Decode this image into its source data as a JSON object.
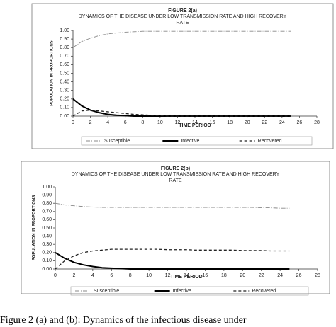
{
  "caption": "Figure 2 (a) and (b): Dynamics of the infectious disease under",
  "chart_data": [
    {
      "type": "line",
      "title": "FIGURE 2(a)",
      "subtitle": "DYNAMICS OF THE DISEASE UNDER LOW TRANSMISSION RATE AND HIGH RECOVERY RATE",
      "xlabel": "TIME PERIOD",
      "ylabel": "POPULATION IN PROPORTIONS",
      "x": [
        0,
        1,
        2,
        3,
        4,
        5,
        6,
        7,
        8,
        9,
        10,
        11,
        12,
        13,
        14,
        15,
        16,
        17,
        18,
        19,
        20,
        21,
        22,
        23,
        24,
        25
      ],
      "series": [
        {
          "name": "Susceptible",
          "color": "#888888",
          "style": "dashdot",
          "values": [
            0.8,
            0.87,
            0.91,
            0.94,
            0.96,
            0.97,
            0.98,
            0.985,
            0.99,
            0.99,
            0.99,
            0.99,
            0.99,
            0.99,
            0.99,
            0.99,
            0.99,
            0.99,
            0.99,
            0.99,
            0.99,
            0.99,
            0.99,
            0.99,
            0.99,
            0.99
          ]
        },
        {
          "name": "Infective",
          "color": "#000000",
          "style": "solid",
          "values": [
            0.2,
            0.12,
            0.07,
            0.04,
            0.02,
            0.01,
            0.005,
            0,
            0,
            0,
            0,
            0,
            0,
            0,
            0,
            0,
            0,
            0,
            0,
            0,
            0,
            0,
            0,
            0,
            0,
            0
          ]
        },
        {
          "name": "Recovered",
          "color": "#222222",
          "style": "dash",
          "values": [
            0,
            0.06,
            0.07,
            0.06,
            0.05,
            0.04,
            0.03,
            0.02,
            0.015,
            0.01,
            0.005,
            0,
            0,
            0,
            0,
            0,
            0,
            0,
            0,
            0,
            0,
            0,
            0,
            0,
            0,
            0
          ]
        }
      ],
      "xlim": [
        0,
        28
      ],
      "xticks": [
        0,
        2,
        4,
        6,
        8,
        10,
        12,
        14,
        16,
        18,
        20,
        22,
        24,
        26,
        28
      ],
      "ylim": [
        0,
        1
      ],
      "yticks": [
        {
          "value": 0,
          "label": "0.00"
        },
        {
          "value": 0.1,
          "label": "0.10"
        },
        {
          "value": 0.2,
          "label": "0.20"
        },
        {
          "value": 0.3,
          "label": "0.30"
        },
        {
          "value": 0.4,
          "label": "0.40"
        },
        {
          "value": 0.5,
          "label": "0.50"
        },
        {
          "value": 0.6,
          "label": "0.60"
        },
        {
          "value": 0.7,
          "label": "0.70"
        },
        {
          "value": 0.8,
          "label": "0.80"
        },
        {
          "value": 0.9,
          "label": "0.90"
        },
        {
          "value": 1,
          "label": "1.00"
        }
      ],
      "legend": "bottom"
    },
    {
      "type": "line",
      "title": "FIGURE 2(b)",
      "subtitle": "DYNAMICS OF THE DISEASE UNDER LOW TRANSMISSION RATE AND HIGH RECOVERY RATE",
      "xlabel": "TIME PERIOD",
      "ylabel": "POPULATION IN PROPORTIONS",
      "x": [
        0,
        1,
        2,
        3,
        4,
        5,
        6,
        7,
        8,
        9,
        10,
        11,
        12,
        13,
        14,
        15,
        16,
        17,
        18,
        19,
        20,
        21,
        22,
        23,
        24,
        25
      ],
      "series": [
        {
          "name": "Susceptible",
          "color": "#888888",
          "style": "dashdot",
          "values": [
            0.8,
            0.78,
            0.77,
            0.76,
            0.755,
            0.75,
            0.75,
            0.75,
            0.75,
            0.75,
            0.75,
            0.75,
            0.75,
            0.75,
            0.75,
            0.75,
            0.75,
            0.75,
            0.75,
            0.75,
            0.75,
            0.75,
            0.745,
            0.745,
            0.74,
            0.74
          ]
        },
        {
          "name": "Infective",
          "color": "#000000",
          "style": "solid",
          "values": [
            0.2,
            0.13,
            0.08,
            0.05,
            0.03,
            0.015,
            0.01,
            0.005,
            0,
            0,
            0,
            0,
            0,
            0,
            0,
            0,
            0,
            0,
            0,
            0,
            0,
            0,
            0,
            0,
            0,
            0
          ]
        },
        {
          "name": "Recovered",
          "color": "#222222",
          "style": "dash",
          "values": [
            0,
            0.1,
            0.16,
            0.2,
            0.22,
            0.23,
            0.24,
            0.24,
            0.24,
            0.24,
            0.24,
            0.24,
            0.235,
            0.235,
            0.235,
            0.23,
            0.23,
            0.23,
            0.23,
            0.23,
            0.225,
            0.225,
            0.225,
            0.22,
            0.22,
            0.22
          ]
        }
      ],
      "xlim": [
        0,
        28
      ],
      "xticks": [
        0,
        2,
        4,
        6,
        8,
        10,
        12,
        14,
        16,
        18,
        20,
        22,
        24,
        26,
        28
      ],
      "ylim": [
        0,
        1
      ],
      "yticks": [
        {
          "value": 0,
          "label": "0.00"
        },
        {
          "value": 0.1,
          "label": "0.10"
        },
        {
          "value": 0.2,
          "label": "0.20"
        },
        {
          "value": 0.3,
          "label": "0.30"
        },
        {
          "value": 0.4,
          "label": "0.40"
        },
        {
          "value": 0.5,
          "label": "0.50"
        },
        {
          "value": 0.6,
          "label": "0.60"
        },
        {
          "value": 0.7,
          "label": "0.70"
        },
        {
          "value": 0.8,
          "label": "0.80"
        },
        {
          "value": 0.9,
          "label": "0.90"
        },
        {
          "value": 1,
          "label": "1.00"
        }
      ],
      "legend": "bottom"
    }
  ]
}
